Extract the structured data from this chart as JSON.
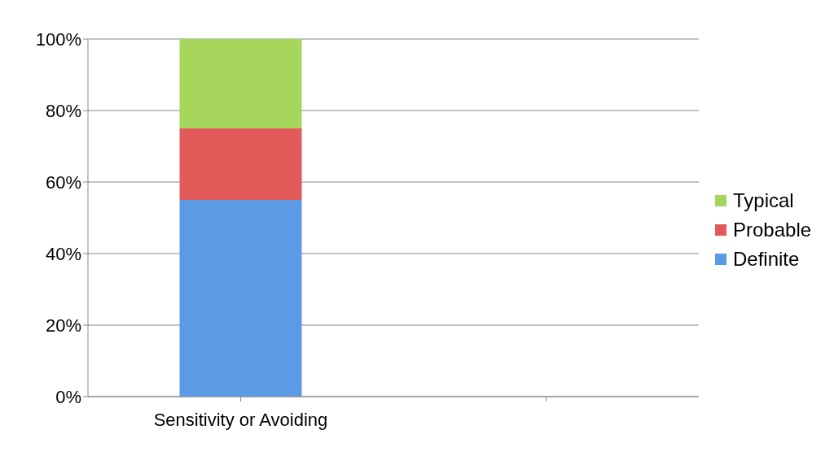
{
  "chart_data": {
    "type": "bar",
    "stacked": true,
    "categories": [
      "Sensitivity or Avoiding",
      null
    ],
    "series": [
      {
        "name": "Definite",
        "color": "#5b9be6",
        "values": [
          55,
          null
        ]
      },
      {
        "name": "Probable",
        "color": "#e25a5a",
        "values": [
          20,
          null
        ]
      },
      {
        "name": "Typical",
        "color": "#a6d65c",
        "values": [
          25,
          null
        ]
      }
    ],
    "ylim": [
      0,
      100
    ],
    "yticks": [
      {
        "value": 0,
        "label": "0%"
      },
      {
        "value": 20,
        "label": "20%"
      },
      {
        "value": 40,
        "label": "40%"
      },
      {
        "value": 60,
        "label": "60%"
      },
      {
        "value": 80,
        "label": "80%"
      },
      {
        "value": 100,
        "label": "100%"
      }
    ],
    "grid": "y",
    "legend": "right"
  }
}
